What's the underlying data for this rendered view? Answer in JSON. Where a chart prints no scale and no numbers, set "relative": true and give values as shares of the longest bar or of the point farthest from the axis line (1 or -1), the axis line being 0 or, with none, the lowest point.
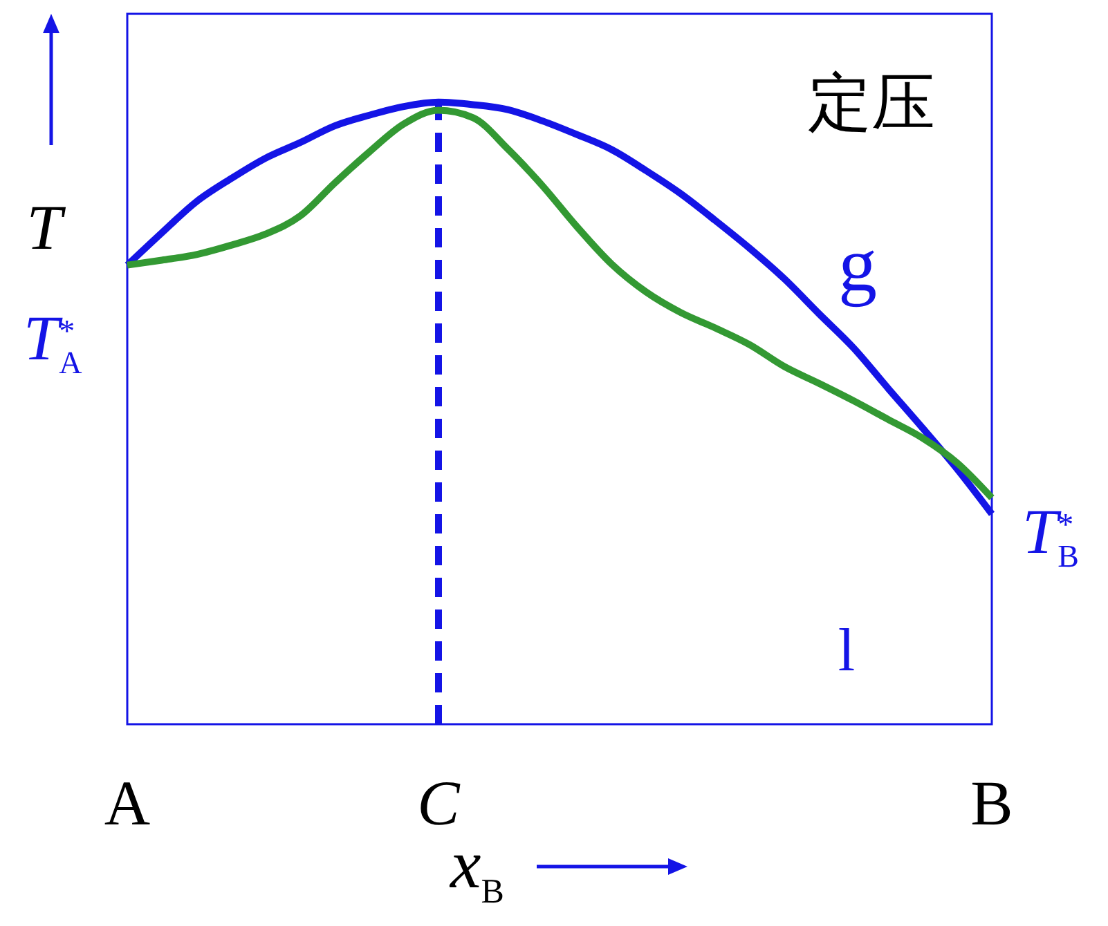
{
  "chart_data": {
    "type": "line",
    "relative": true,
    "xlabel": "x$_{B}$",
    "ylabel": "T",
    "categories": [
      "A",
      null,
      null,
      null,
      null,
      null,
      null,
      null,
      null,
      "C",
      null,
      null,
      null,
      null,
      null,
      null,
      null,
      null,
      null,
      null,
      null,
      null,
      null,
      null,
      null,
      "B"
    ],
    "series": [
      {
        "color": "#1414e6",
        "values": [
          0.738,
          0.79,
          0.84,
          0.877,
          0.91,
          0.935,
          0.962,
          0.979,
          0.993,
          1,
          0.996,
          0.988,
          0.97,
          0.948,
          0.924,
          0.89,
          0.853,
          0.81,
          0.765,
          0.716,
          0.66,
          0.605,
          0.54,
          0.476,
          0.41,
          0.338
        ]
      },
      {
        "color": "#339933",
        "values": [
          0.738,
          0.746,
          0.755,
          0.77,
          0.788,
          0.817,
          0.87,
          0.92,
          0.965,
          0.987,
          0.975,
          0.925,
          0.866,
          0.8,
          0.74,
          0.695,
          0.662,
          0.637,
          0.61,
          0.575,
          0.548,
          0.52,
          0.49,
          0.46,
          0.42,
          0.364
        ]
      }
    ],
    "ref_lines": [
      {
        "axis": "x",
        "value": "C",
        "color": "#1414e6",
        "line_style": "dashed"
      }
    ],
    "annotations": [
      {
        "text": "T$^{*}$$_{A}$",
        "x": "A",
        "y": 0.738
      },
      {
        "text": "T$^{*}$$_{B}$",
        "x": "B",
        "y": 0.338
      },
      "定压",
      "g",
      "l"
    ],
    "marker": "none",
    "line_style": "solid"
  }
}
